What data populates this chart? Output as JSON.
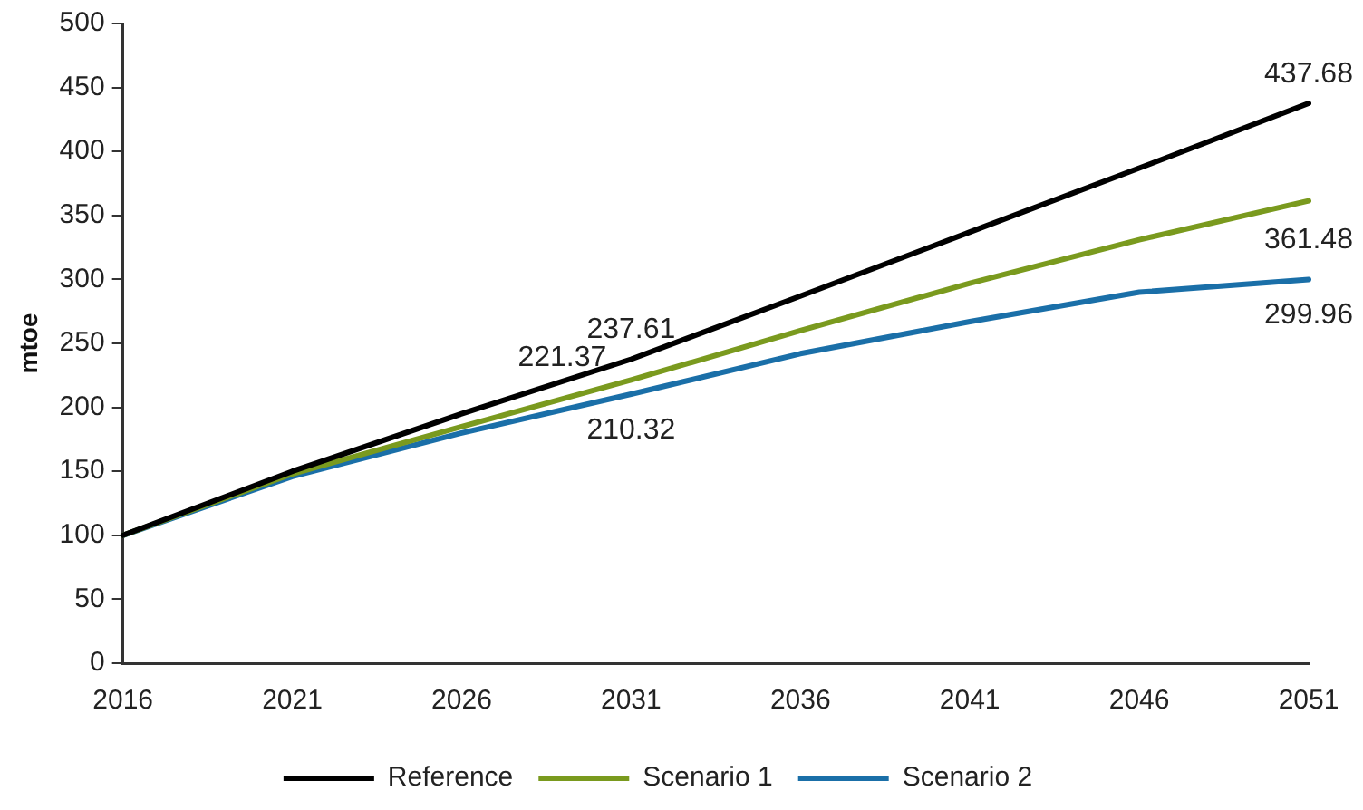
{
  "chart_data": {
    "type": "line",
    "ylabel": "mtoe",
    "categories": [
      "2016",
      "2021",
      "2026",
      "2031",
      "2036",
      "2041",
      "2046",
      "2051"
    ],
    "series": [
      {
        "name": "Reference",
        "color": "#000000",
        "values": [
          100,
          150,
          195,
          237.61,
          287,
          337,
          387,
          437.68
        ],
        "value_labels": [
          null,
          null,
          null,
          "237.61",
          null,
          null,
          null,
          "437.68"
        ]
      },
      {
        "name": "Scenario 1",
        "color": "#7a9a1e",
        "values": [
          100,
          148,
          185,
          221.37,
          260,
          297,
          331,
          361.48
        ],
        "value_labels": [
          null,
          null,
          null,
          "221.37",
          null,
          null,
          null,
          "361.48"
        ]
      },
      {
        "name": "Scenario 2",
        "color": "#1a6fa8",
        "values": [
          100,
          146,
          180,
          210.32,
          242,
          267,
          290,
          299.96
        ],
        "value_labels": [
          null,
          null,
          null,
          "210.32",
          null,
          null,
          null,
          "299.96"
        ]
      }
    ],
    "ylim": [
      0,
      500
    ],
    "yticks": [
      0,
      50,
      100,
      150,
      200,
      250,
      300,
      350,
      400,
      450,
      500
    ],
    "grid": false,
    "legend": "bottom",
    "marker": "none",
    "line_style": "solid"
  }
}
